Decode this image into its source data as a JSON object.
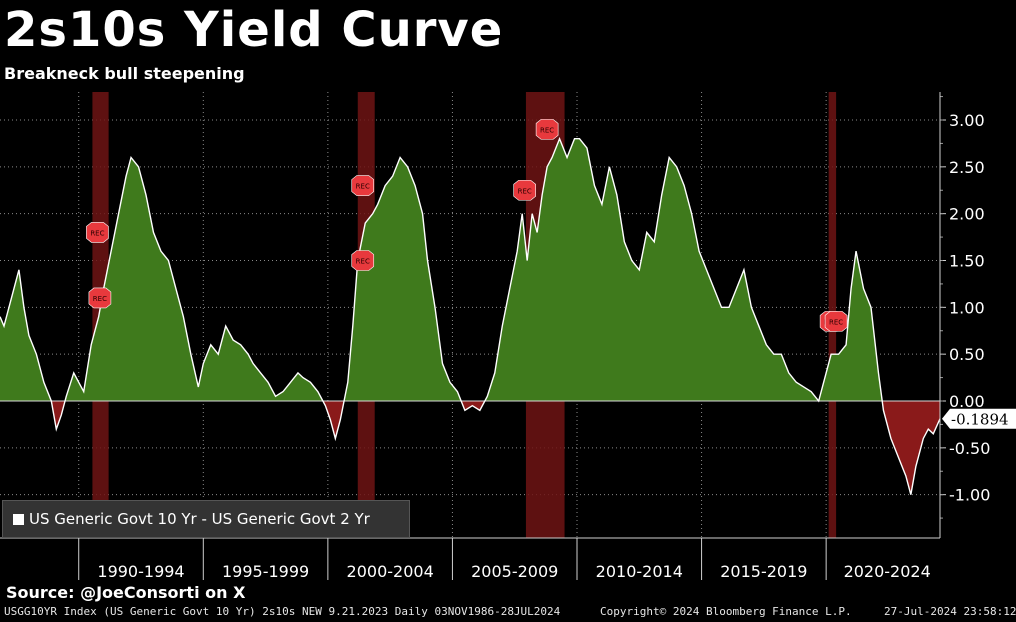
{
  "header": {
    "title": "2s10s Yield Curve",
    "subtitle": "Breakneck bull steepening"
  },
  "footer": {
    "source": "Source: @JoeConsorti on X",
    "index_info": "USGG10YR Index (US Generic Govt 10 Yr) 2s10s NEW 9.21.2023  Daily 03NOV1986-28JUL2024",
    "copyright": "Copyright© 2024 Bloomberg Finance L.P.",
    "timestamp": "27-Jul-2024 23:58:12"
  },
  "colors": {
    "positive_fill": "#3f7a1c",
    "negative_fill": "#8a1a1a",
    "line": "#ffffff",
    "recession_band": "#6e1414",
    "rec_marker": "#e8393d"
  },
  "chart_data": {
    "type": "area",
    "title": "2s10s Yield Curve",
    "subtitle": "Breakneck bull steepening",
    "xlabel": "",
    "ylabel": "",
    "xlim": [
      1986.84,
      2024.57
    ],
    "ylim": [
      -1.4,
      3.3
    ],
    "y_ticks": [
      3.0,
      2.5,
      2.0,
      1.5,
      1.0,
      0.5,
      0.0,
      -0.5,
      -1.0
    ],
    "y_tick_labels": [
      "3.00",
      "2.50",
      "2.00",
      "1.50",
      "1.00",
      "0.50",
      "0.00",
      "-0.50",
      "-1.00"
    ],
    "x_period_labels": [
      "1990-1994",
      "1995-1999",
      "2000-2004",
      "2005-2009",
      "2010-2014",
      "2015-2019",
      "2020-2024"
    ],
    "x_period_bounds": [
      1990,
      1995,
      2000,
      2005,
      2010,
      2015,
      2020,
      2025
    ],
    "grid": true,
    "legend_position": "bottom-left",
    "series": [
      {
        "name": "US Generic Govt 10 Yr - US Generic Govt 2 Yr",
        "x": [
          1986.84,
          1987.0,
          1987.3,
          1987.6,
          1987.8,
          1988.0,
          1988.3,
          1988.6,
          1988.9,
          1989.1,
          1989.3,
          1989.5,
          1989.8,
          1990.0,
          1990.2,
          1990.5,
          1990.8,
          1991.0,
          1991.3,
          1991.6,
          1991.9,
          1992.1,
          1992.4,
          1992.7,
          1993.0,
          1993.3,
          1993.6,
          1993.9,
          1994.2,
          1994.5,
          1994.8,
          1995.0,
          1995.3,
          1995.6,
          1995.9,
          1996.2,
          1996.5,
          1996.8,
          1997.0,
          1997.3,
          1997.6,
          1997.9,
          1998.2,
          1998.5,
          1998.8,
          1999.0,
          1999.3,
          1999.6,
          1999.9,
          2000.1,
          2000.3,
          2000.5,
          2000.8,
          2001.0,
          2001.2,
          2001.5,
          2001.8,
          2002.0,
          2002.3,
          2002.6,
          2002.9,
          2003.2,
          2003.5,
          2003.8,
          2004.0,
          2004.3,
          2004.6,
          2004.9,
          2005.2,
          2005.5,
          2005.8,
          2006.1,
          2006.4,
          2006.7,
          2007.0,
          2007.3,
          2007.6,
          2007.8,
          2008.0,
          2008.2,
          2008.4,
          2008.6,
          2008.8,
          2009.0,
          2009.3,
          2009.6,
          2009.9,
          2010.1,
          2010.4,
          2010.7,
          2011.0,
          2011.3,
          2011.6,
          2011.9,
          2012.2,
          2012.5,
          2012.8,
          2013.1,
          2013.4,
          2013.7,
          2014.0,
          2014.3,
          2014.6,
          2014.9,
          2015.2,
          2015.5,
          2015.8,
          2016.1,
          2016.4,
          2016.7,
          2017.0,
          2017.3,
          2017.6,
          2017.9,
          2018.2,
          2018.5,
          2018.8,
          2019.1,
          2019.4,
          2019.7,
          2020.0,
          2020.2,
          2020.5,
          2020.8,
          2021.0,
          2021.2,
          2021.5,
          2021.8,
          2022.1,
          2022.3,
          2022.6,
          2022.9,
          2023.2,
          2023.4,
          2023.6,
          2023.9,
          2024.1,
          2024.3,
          2024.57
        ],
        "values": [
          0.9,
          0.8,
          1.1,
          1.4,
          1.0,
          0.7,
          0.5,
          0.2,
          0.0,
          -0.3,
          -0.15,
          0.05,
          0.3,
          0.2,
          0.1,
          0.6,
          0.9,
          1.2,
          1.6,
          2.0,
          2.4,
          2.6,
          2.5,
          2.2,
          1.8,
          1.6,
          1.5,
          1.2,
          0.9,
          0.5,
          0.15,
          0.4,
          0.6,
          0.5,
          0.8,
          0.65,
          0.6,
          0.5,
          0.4,
          0.3,
          0.2,
          0.05,
          0.1,
          0.2,
          0.3,
          0.25,
          0.2,
          0.1,
          -0.05,
          -0.2,
          -0.4,
          -0.2,
          0.2,
          0.8,
          1.5,
          1.9,
          2.0,
          2.1,
          2.3,
          2.4,
          2.6,
          2.5,
          2.3,
          2.0,
          1.5,
          1.0,
          0.4,
          0.2,
          0.1,
          -0.1,
          -0.05,
          -0.1,
          0.05,
          0.3,
          0.8,
          1.2,
          1.6,
          2.0,
          1.5,
          2.0,
          1.8,
          2.2,
          2.5,
          2.6,
          2.8,
          2.6,
          2.8,
          2.8,
          2.7,
          2.3,
          2.1,
          2.5,
          2.2,
          1.7,
          1.5,
          1.4,
          1.8,
          1.7,
          2.2,
          2.6,
          2.5,
          2.3,
          2.0,
          1.6,
          1.4,
          1.2,
          1.0,
          1.0,
          1.2,
          1.4,
          1.0,
          0.8,
          0.6,
          0.5,
          0.5,
          0.3,
          0.2,
          0.15,
          0.1,
          0.0,
          0.3,
          0.5,
          0.5,
          0.6,
          1.2,
          1.6,
          1.2,
          1.0,
          0.3,
          -0.1,
          -0.4,
          -0.6,
          -0.8,
          -1.0,
          -0.7,
          -0.4,
          -0.3,
          -0.35,
          -0.1894
        ]
      }
    ],
    "recession_bands": [
      [
        1990.55,
        1991.2
      ],
      [
        2001.2,
        2001.88
      ],
      [
        2007.95,
        2009.5
      ],
      [
        2020.1,
        2020.4
      ]
    ],
    "rec_markers": [
      {
        "label": "REC",
        "x": 1990.75,
        "y": 1.8
      },
      {
        "label": "REC",
        "x": 1990.85,
        "y": 1.1
      },
      {
        "label": "REC",
        "x": 2001.4,
        "y": 2.3
      },
      {
        "label": "REC",
        "x": 2001.4,
        "y": 1.5
      },
      {
        "label": "REC",
        "x": 2007.9,
        "y": 2.25
      },
      {
        "label": "REC",
        "x": 2008.8,
        "y": 2.9
      },
      {
        "label": "REC",
        "x": 2020.2,
        "y": 0.85
      },
      {
        "label": "REC",
        "x": 2020.4,
        "y": 0.85
      }
    ],
    "last_value": {
      "x": 2024.57,
      "y": -0.1894,
      "label": "-0.1894"
    }
  }
}
